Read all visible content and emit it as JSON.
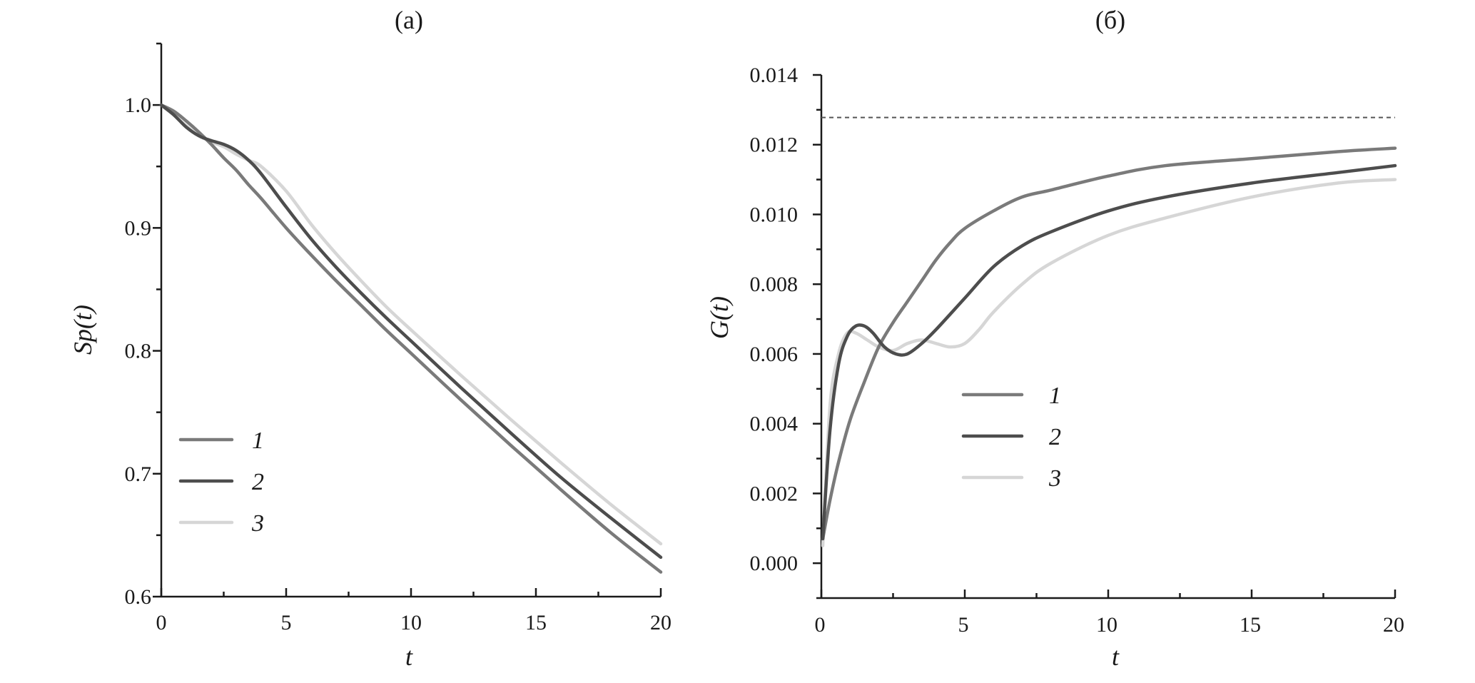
{
  "chart_data": [
    {
      "type": "line",
      "title": "(a)",
      "xlabel": "t",
      "ylabel": "Sp(t)",
      "xlim": [
        0,
        20
      ],
      "ylim": [
        0.6,
        1.05
      ],
      "xticks": [
        0,
        5,
        10,
        15,
        20
      ],
      "yticks": [
        0.6,
        0.7,
        0.8,
        0.9,
        1.0
      ],
      "xtick_labels": [
        "0",
        "5",
        "10",
        "15",
        "20"
      ],
      "ytick_labels": [
        "0.6",
        "0.7",
        "0.8",
        "0.9",
        "1.0"
      ],
      "grid": false,
      "legend": "bottom-left",
      "series": [
        {
          "name": "1",
          "color": "#7a7a7a",
          "x": [
            0,
            0.5,
            1,
            1.5,
            2,
            2.5,
            3,
            3.5,
            4,
            5,
            6,
            7,
            8,
            9,
            10,
            12,
            14,
            16,
            18,
            20
          ],
          "y": [
            1.0,
            0.995,
            0.987,
            0.978,
            0.968,
            0.957,
            0.947,
            0.935,
            0.924,
            0.9,
            0.878,
            0.857,
            0.837,
            0.817,
            0.798,
            0.76,
            0.723,
            0.687,
            0.652,
            0.62
          ]
        },
        {
          "name": "2",
          "color": "#4d4d4d",
          "x": [
            0,
            0.5,
            1,
            1.5,
            2,
            2.5,
            3,
            3.5,
            4,
            5,
            6,
            7,
            8,
            9,
            10,
            12,
            14,
            16,
            18,
            20
          ],
          "y": [
            1.0,
            0.992,
            0.982,
            0.975,
            0.971,
            0.968,
            0.963,
            0.955,
            0.944,
            0.917,
            0.891,
            0.868,
            0.847,
            0.827,
            0.808,
            0.77,
            0.733,
            0.697,
            0.664,
            0.632
          ]
        },
        {
          "name": "3",
          "color": "#d6d6d6",
          "x": [
            0,
            0.5,
            1,
            1.5,
            2,
            2.5,
            3,
            3.5,
            4,
            5,
            6,
            7,
            8,
            9,
            10,
            12,
            14,
            16,
            18,
            20
          ],
          "y": [
            1.0,
            0.992,
            0.983,
            0.975,
            0.97,
            0.966,
            0.96,
            0.955,
            0.95,
            0.93,
            0.903,
            0.879,
            0.857,
            0.836,
            0.817,
            0.78,
            0.744,
            0.709,
            0.675,
            0.643
          ]
        }
      ]
    },
    {
      "type": "line",
      "title": "(б)",
      "xlabel": "t",
      "ylabel": "G(t)",
      "xlim": [
        0,
        20
      ],
      "ylim": [
        -0.001,
        0.014
      ],
      "xticks": [
        0,
        5,
        10,
        15,
        20
      ],
      "yticks": [
        0.0,
        0.002,
        0.004,
        0.006,
        0.008,
        0.01,
        0.012,
        0.014
      ],
      "xtick_labels": [
        "0",
        "5",
        "10",
        "15",
        "20"
      ],
      "ytick_labels": [
        "0.000",
        "0.002",
        "0.004",
        "0.006",
        "0.008",
        "0.010",
        "0.012",
        "0.014"
      ],
      "grid": false,
      "legend": "center",
      "reference_line_y": 0.01278,
      "reference_line_color": "#555555",
      "series": [
        {
          "name": "1",
          "color": "#7a7a7a",
          "x": [
            0.05,
            0.3,
            0.6,
            1.0,
            1.5,
            2.0,
            2.5,
            3.0,
            3.5,
            4.0,
            4.5,
            5.0,
            6.0,
            7.0,
            8.0,
            10.0,
            12.0,
            15.0,
            18.0,
            20.0
          ],
          "y": [
            0.0007,
            0.0018,
            0.0029,
            0.0041,
            0.0052,
            0.0062,
            0.0069,
            0.0075,
            0.0081,
            0.0087,
            0.0092,
            0.0096,
            0.0101,
            0.0105,
            0.0107,
            0.0111,
            0.0114,
            0.0116,
            0.0118,
            0.0119
          ]
        },
        {
          "name": "2",
          "color": "#4d4d4d",
          "x": [
            0.05,
            0.3,
            0.6,
            0.9,
            1.2,
            1.5,
            1.8,
            2.2,
            2.6,
            3.0,
            3.5,
            4.0,
            5.0,
            6.0,
            7.0,
            8.0,
            10.0,
            12.0,
            15.0,
            18.0,
            20.0
          ],
          "y": [
            0.0007,
            0.0038,
            0.0057,
            0.0065,
            0.0068,
            0.0068,
            0.0066,
            0.0062,
            0.006,
            0.006,
            0.0063,
            0.0067,
            0.0076,
            0.0085,
            0.0091,
            0.0095,
            0.0101,
            0.0105,
            0.0109,
            0.0112,
            0.0114
          ]
        },
        {
          "name": "3",
          "color": "#d6d6d6",
          "x": [
            0.05,
            0.3,
            0.6,
            0.9,
            1.2,
            1.6,
            2.0,
            2.5,
            3.0,
            3.5,
            4.0,
            4.5,
            5.0,
            5.5,
            6.0,
            7.0,
            8.0,
            10.0,
            12.0,
            15.0,
            18.0,
            20.0
          ],
          "y": [
            0.0005,
            0.0045,
            0.006,
            0.0066,
            0.0066,
            0.0064,
            0.0062,
            0.0061,
            0.0063,
            0.0064,
            0.0063,
            0.0062,
            0.0063,
            0.0067,
            0.0072,
            0.008,
            0.0086,
            0.0094,
            0.0099,
            0.0105,
            0.0109,
            0.011
          ]
        }
      ]
    }
  ]
}
